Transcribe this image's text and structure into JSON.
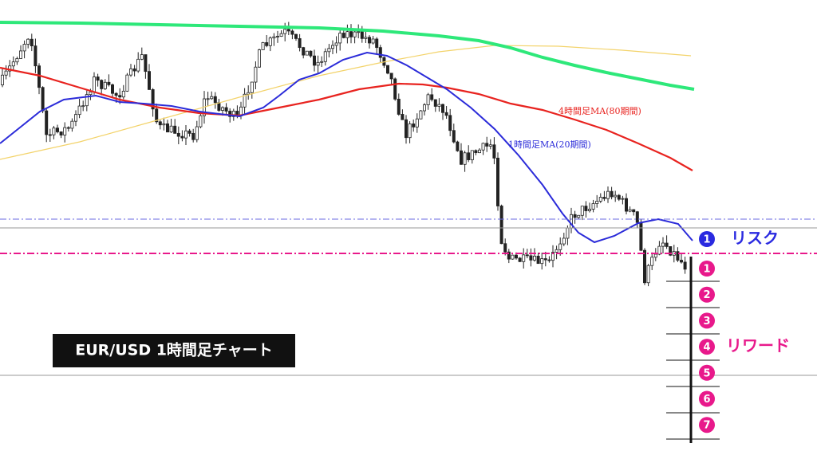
{
  "chart_label": "EUR/USD  1時間足チャート",
  "annotations": {
    "ma_4h": "4時間足MA(80期間)",
    "ma_1h": "1時間足MA(20期間)"
  },
  "risk": {
    "number": 1,
    "label": "リスク"
  },
  "reward": {
    "numbers": [
      1,
      2,
      3,
      4,
      5,
      6,
      7
    ],
    "label": "リワード"
  }
}
